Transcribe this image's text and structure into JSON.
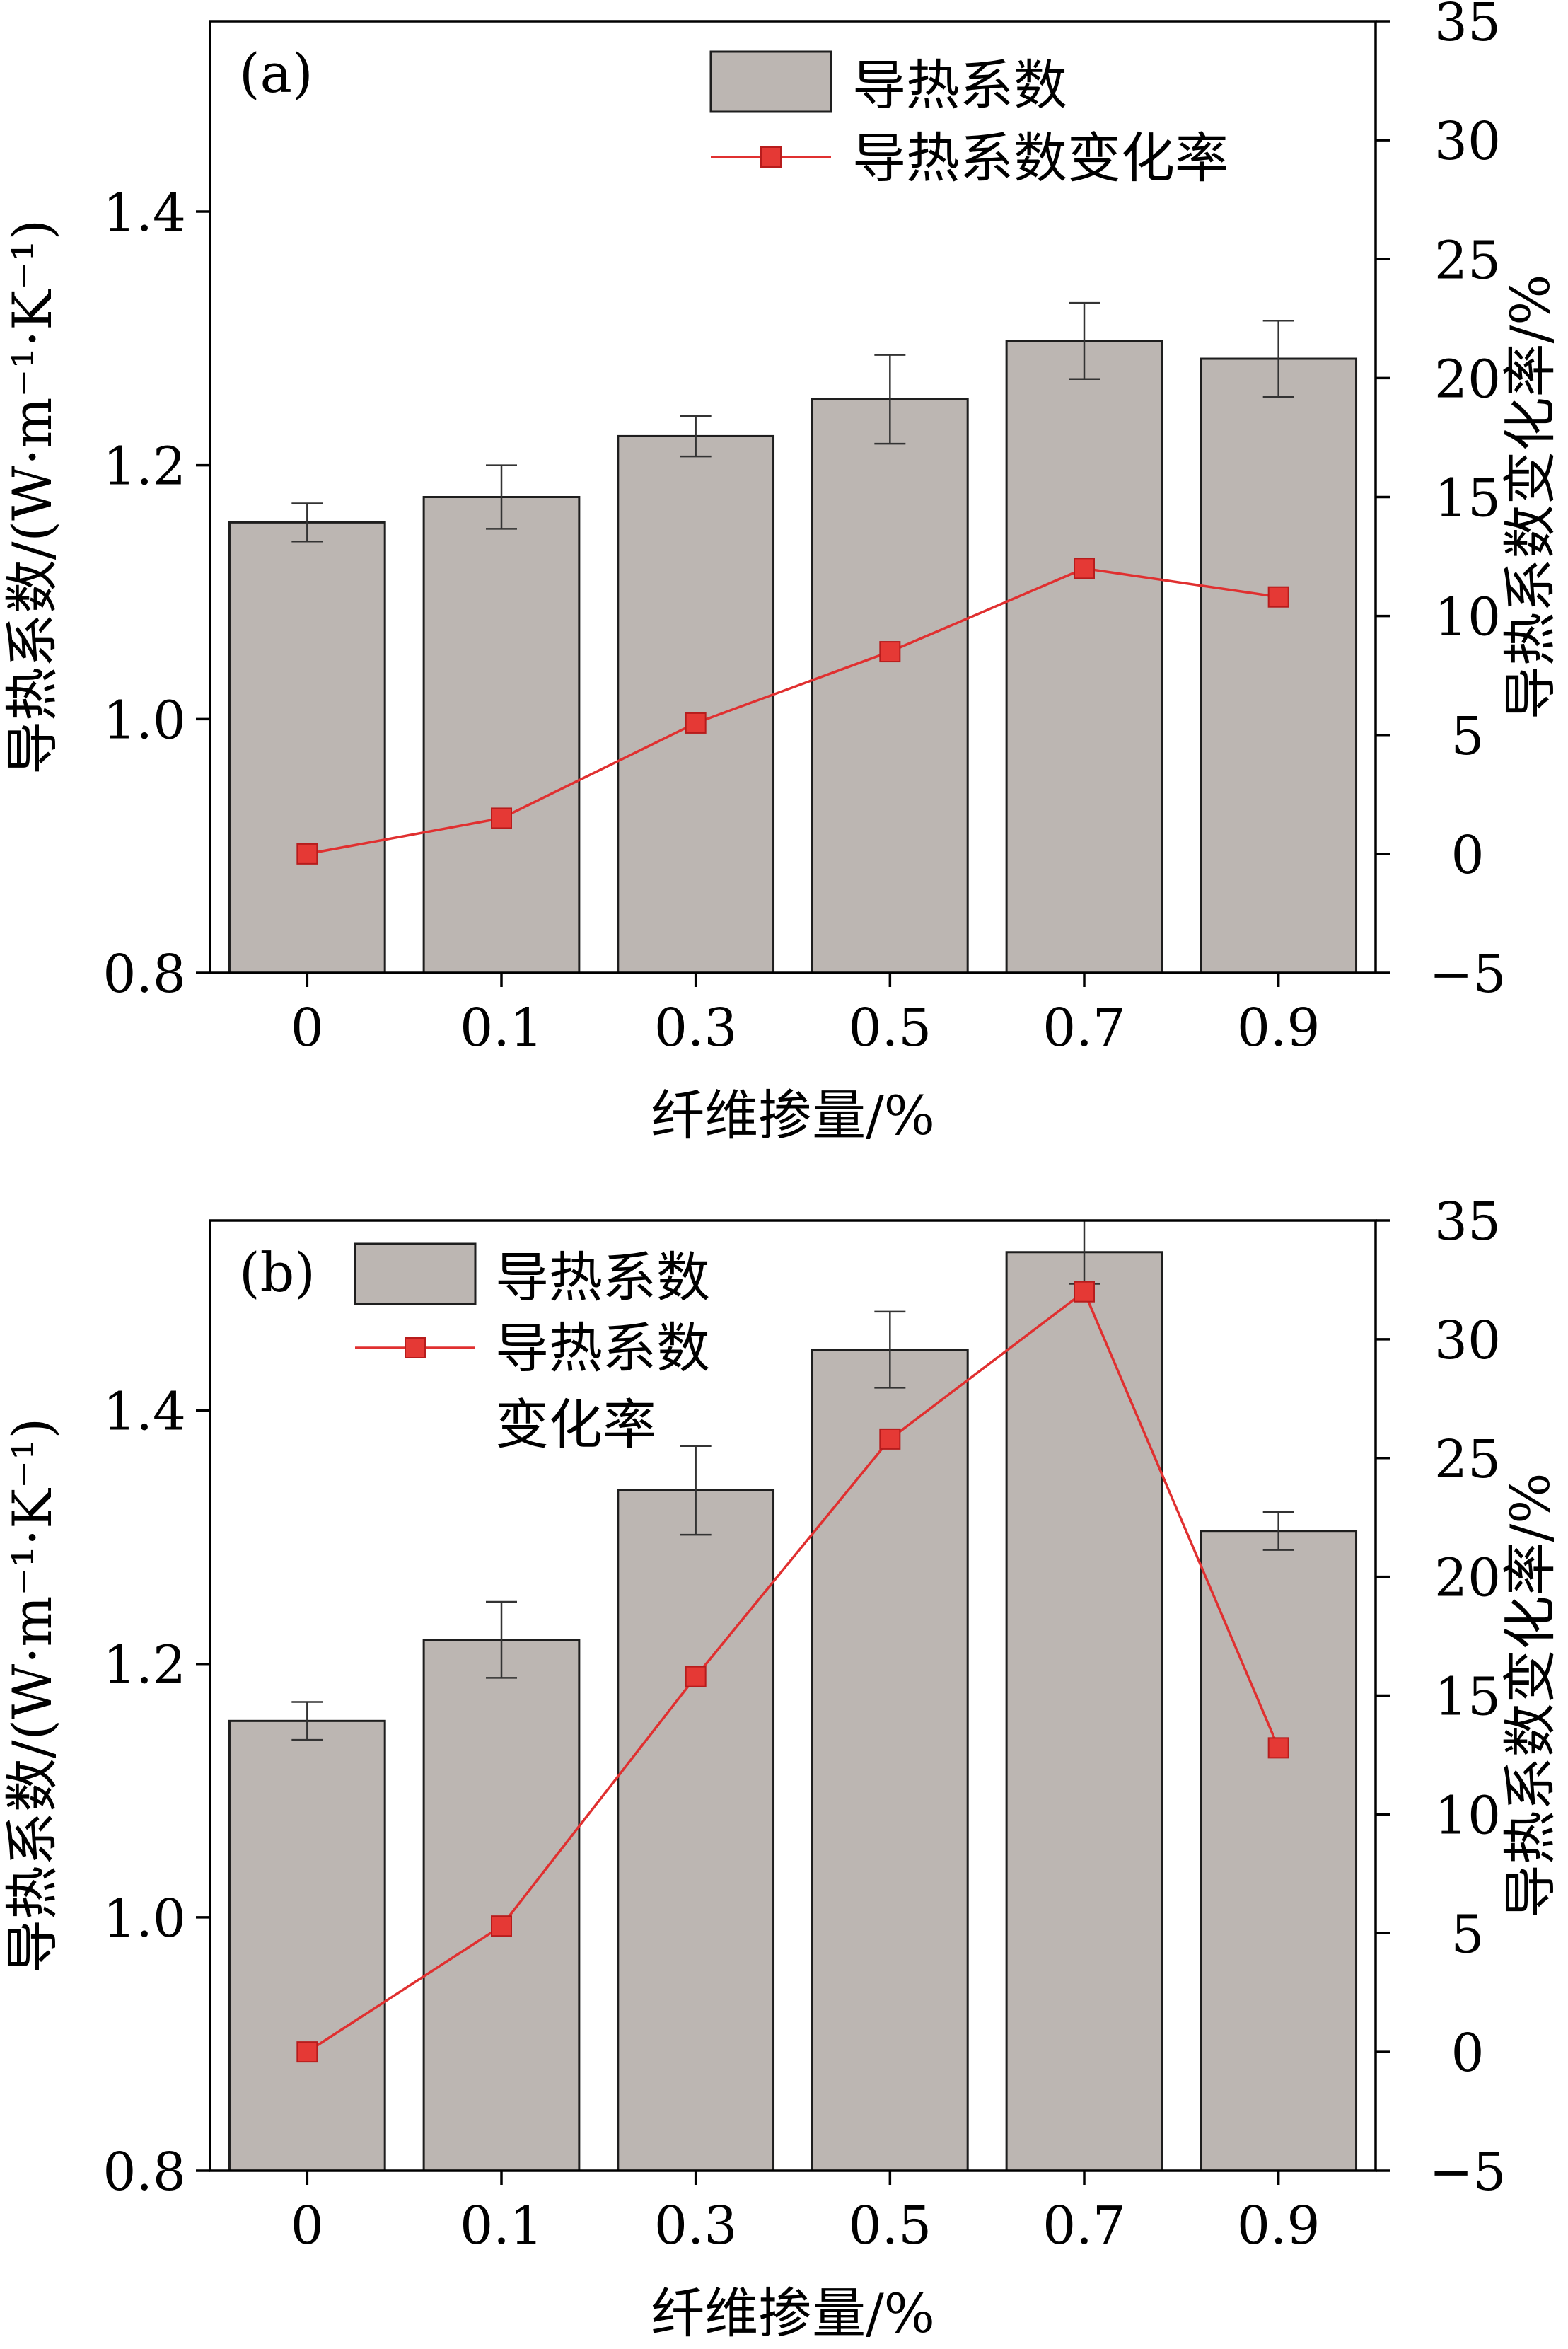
{
  "chart_data": [
    {
      "type": "bar",
      "panel_label": "(a)",
      "categories": [
        "0",
        "0.1",
        "0.3",
        "0.5",
        "0.7",
        "0.9"
      ],
      "xlabel": "纤维掺量/%",
      "ylabel_left": "导热系数/(W·m⁻¹·K⁻¹)",
      "ylabel_right": "导热系数变化率/%",
      "ylim_left": [
        0.8,
        1.55
      ],
      "ylim_right": [
        -5,
        35
      ],
      "yticks_left": [
        "0.8",
        "1.0",
        "1.2",
        "1.4"
      ],
      "yticks_right": [
        "−5",
        "0",
        "5",
        "10",
        "15",
        "20",
        "25",
        "30",
        "35"
      ],
      "legend_position": "top-center",
      "legend": [
        "导热系数",
        "导热系数变化率"
      ],
      "series": [
        {
          "name": "导热系数",
          "kind": "bar",
          "axis": "left",
          "values": [
            1.155,
            1.175,
            1.223,
            1.252,
            1.298,
            1.284
          ],
          "errors": [
            0.015,
            0.025,
            0.016,
            0.035,
            0.03,
            0.03
          ]
        },
        {
          "name": "导热系数变化率",
          "kind": "line",
          "axis": "right",
          "values": [
            0.0,
            1.5,
            5.5,
            8.5,
            12.0,
            10.8
          ]
        }
      ]
    },
    {
      "type": "bar",
      "panel_label": "(b)",
      "categories": [
        "0",
        "0.1",
        "0.3",
        "0.5",
        "0.7",
        "0.9"
      ],
      "xlabel": "纤维掺量/%",
      "ylabel_left": "导热系数/(W·m⁻¹·K⁻¹)",
      "ylabel_right": "导热系数变化率/%",
      "ylim_left": [
        0.8,
        1.55
      ],
      "ylim_right": [
        -5,
        35
      ],
      "yticks_left": [
        "0.8",
        "1.0",
        "1.2",
        "1.4"
      ],
      "yticks_right": [
        "−5",
        "0",
        "5",
        "10",
        "15",
        "20",
        "25",
        "30",
        "35"
      ],
      "legend_position": "top-left",
      "legend": [
        "导热系数",
        "导热系数",
        "变化率"
      ],
      "series": [
        {
          "name": "导热系数",
          "kind": "bar",
          "axis": "left",
          "values": [
            1.155,
            1.219,
            1.337,
            1.448,
            1.525,
            1.305
          ],
          "errors": [
            0.015,
            0.03,
            0.035,
            0.03,
            0.025,
            0.015
          ]
        },
        {
          "name": "导热系数变化率",
          "kind": "line",
          "axis": "right",
          "values": [
            0.0,
            5.3,
            15.8,
            25.8,
            32.0,
            12.8
          ]
        }
      ]
    }
  ],
  "colors": {
    "bar_fill": "#bcb6b2",
    "bar_stroke": "#1e1e1e",
    "line": "#e03030",
    "marker": "#e53935",
    "axis": "#000000"
  }
}
